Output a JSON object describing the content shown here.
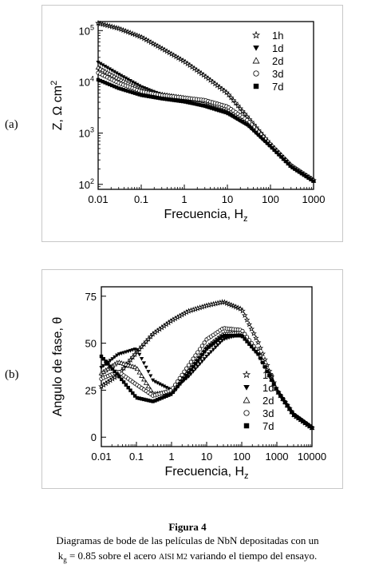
{
  "labels": {
    "a": "(a)",
    "b": "(b)"
  },
  "caption": {
    "title": "Figura 4",
    "line1": "Diagramas de bode de las películas de NbN depositadas con un",
    "line2_k": "k",
    "line2_sub": "g",
    "line2_a": " = 0.85 sobre el acero ",
    "line2_steel": "AISI M2",
    "line2_b": " variando el tiempo del ensayo."
  },
  "chart_data": [
    {
      "type": "scatter",
      "panel": "a",
      "xlabel": "Frecuencia, H",
      "xlabel_sub": "z",
      "ylabel": "Z, Ω cm",
      "ylabel_sup": "2",
      "x_scale": "log",
      "y_scale": "log",
      "xlim": [
        0.01,
        1000
      ],
      "ylim": [
        80,
        150000
      ],
      "x_ticks": [
        0.01,
        0.1,
        1,
        10,
        100,
        1000
      ],
      "x_tick_labels": [
        "0.01",
        "0.1",
        "1",
        "10",
        "100",
        "1000"
      ],
      "y_ticks": [
        100,
        1000,
        10000,
        100000
      ],
      "y_tick_labels": [
        [
          "10",
          "2"
        ],
        [
          "10",
          "3"
        ],
        [
          "10",
          "4"
        ],
        [
          "10",
          "5"
        ]
      ],
      "legend_position": "top-right",
      "grid": false,
      "series": [
        {
          "name": "1h",
          "marker": "star",
          "x": [
            0.01,
            0.03,
            0.1,
            0.3,
            1,
            3,
            10,
            30,
            100,
            300,
            1000
          ],
          "y": [
            140000,
            110000,
            75000,
            45000,
            25000,
            13000,
            6000,
            2000,
            600,
            230,
            120
          ]
        },
        {
          "name": "1d",
          "marker": "triangle-down",
          "x": [
            0.01,
            0.03,
            0.1,
            0.3,
            1,
            3,
            10,
            30,
            100,
            300,
            1000
          ],
          "y": [
            24000,
            14000,
            8000,
            5500,
            4200,
            3300,
            2400,
            1400,
            550,
            220,
            115
          ]
        },
        {
          "name": "2d",
          "marker": "triangle-up",
          "x": [
            0.01,
            0.03,
            0.1,
            0.3,
            1,
            3,
            10,
            30,
            100,
            300,
            1000
          ],
          "y": [
            19000,
            11500,
            7000,
            5700,
            4900,
            4200,
            3000,
            1600,
            580,
            230,
            118
          ]
        },
        {
          "name": "3d",
          "marker": "circle",
          "x": [
            0.01,
            0.03,
            0.1,
            0.3,
            1,
            3,
            10,
            30,
            100,
            300,
            1000
          ],
          "y": [
            15000,
            9500,
            6500,
            5500,
            4900,
            4400,
            3300,
            1750,
            600,
            235,
            120
          ]
        },
        {
          "name": "7d",
          "marker": "square",
          "x": [
            0.01,
            0.03,
            0.1,
            0.3,
            1,
            3,
            10,
            30,
            100,
            300,
            1000
          ],
          "y": [
            11000,
            7500,
            5500,
            4700,
            4100,
            3400,
            2500,
            1450,
            560,
            225,
            116
          ]
        }
      ]
    },
    {
      "type": "scatter",
      "panel": "b",
      "xlabel": "Frecuencia, H",
      "xlabel_sub": "z",
      "ylabel": "Angulo de fase, θ",
      "x_scale": "log",
      "y_scale": "linear",
      "xlim": [
        0.01,
        10000
      ],
      "ylim": [
        -5,
        80
      ],
      "x_ticks": [
        0.01,
        0.1,
        1,
        10,
        100,
        1000,
        10000
      ],
      "x_tick_labels": [
        "0.01",
        "0.1",
        "1",
        "10",
        "100",
        "1000",
        "10000"
      ],
      "y_ticks": [
        0,
        25,
        50,
        75
      ],
      "y_tick_labels": [
        "0",
        "25",
        "50",
        "75"
      ],
      "legend_position": "bottom-right",
      "grid": false,
      "series": [
        {
          "name": "1h",
          "marker": "star",
          "x": [
            0.01,
            0.03,
            0.1,
            0.3,
            1,
            3,
            10,
            30,
            100,
            300,
            1000,
            3000,
            10000
          ],
          "y": [
            27,
            33,
            45,
            55,
            62,
            67,
            70,
            72,
            68,
            50,
            25,
            12,
            5
          ]
        },
        {
          "name": "1d",
          "marker": "triangle-down",
          "x": [
            0.01,
            0.03,
            0.1,
            0.3,
            1,
            3,
            10,
            30,
            100,
            300,
            1000,
            3000,
            10000
          ],
          "y": [
            37,
            44,
            47,
            30,
            25,
            32,
            43,
            52,
            55,
            44,
            25,
            12,
            5
          ]
        },
        {
          "name": "2d",
          "marker": "triangle-up",
          "x": [
            0.01,
            0.03,
            0.1,
            0.3,
            1,
            3,
            10,
            30,
            100,
            300,
            1000,
            3000,
            10000
          ],
          "y": [
            34,
            40,
            37,
            23,
            24,
            35,
            48,
            55,
            56,
            45,
            25,
            12,
            5
          ]
        },
        {
          "name": "3d",
          "marker": "circle",
          "x": [
            0.01,
            0.03,
            0.1,
            0.3,
            1,
            3,
            10,
            30,
            100,
            300,
            1000,
            3000,
            10000
          ],
          "y": [
            31,
            35,
            28,
            22,
            25,
            38,
            52,
            58,
            57,
            45,
            25,
            12,
            5
          ]
        },
        {
          "name": "7d",
          "marker": "square",
          "x": [
            0.01,
            0.03,
            0.1,
            0.3,
            1,
            3,
            10,
            30,
            100,
            300,
            1000,
            3000,
            10000
          ],
          "y": [
            43,
            33,
            21,
            19,
            23,
            34,
            47,
            54,
            54,
            44,
            25,
            12,
            5
          ]
        }
      ]
    }
  ]
}
